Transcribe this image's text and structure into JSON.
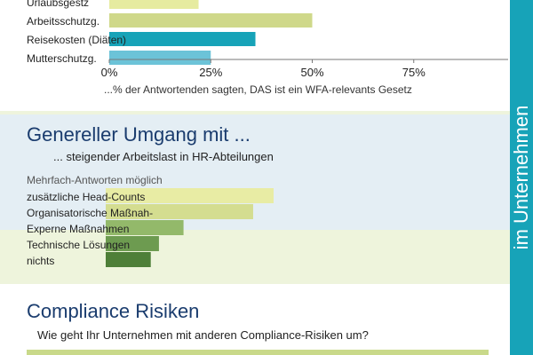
{
  "sidebar": {
    "text": "im Unternehmen",
    "color": "#17a3b8"
  },
  "sections": [
    {
      "title": "",
      "subtitle": "",
      "note": "",
      "chart_data": {
        "type": "bar",
        "orientation": "horizontal",
        "categories": [
          "Urlaubsgestz",
          "Arbeitsschutzg.",
          "Reisekosten (Diäten)",
          "Mutterschutzg."
        ],
        "values": [
          22,
          50,
          36,
          25
        ],
        "colors": [
          "#e6eba0",
          "#cfd88a",
          "#17a3b8",
          "#6cc3d8"
        ],
        "xlim": [
          0,
          100
        ],
        "xticks": [
          0,
          25,
          50,
          75
        ],
        "xtick_labels": [
          "0%",
          "25%",
          "50%",
          "75%"
        ],
        "xlabel": "...% der Antwortenden sagten, DAS ist ein WFA-relevants Gesetz",
        "ylabel": "",
        "grid": false
      }
    },
    {
      "title": "Genereller Umgang mit ...",
      "subtitle": "... steigender Arbeitslast in HR-Abteilungen",
      "note": "Mehrfach-Antworten möglich",
      "chart_data": {
        "type": "bar",
        "orientation": "horizontal",
        "categories": [
          "zusätzliche Head-Counts",
          "Organisatorische Maßnah-",
          "Experne Maßnahmen",
          "Technische Lösungen",
          "nichts"
        ],
        "values": [
          41,
          36,
          19,
          13,
          11
        ],
        "colors": [
          "#e8eca4",
          "#d4dd90",
          "#93b96a",
          "#6d9b50",
          "#4e7f38"
        ],
        "xlim": [
          0,
          100
        ],
        "xlabel": "",
        "ylabel": "",
        "grid": false
      }
    },
    {
      "title": "Compliance Risiken",
      "subtitle": "Wie geht Ihr Unternehmen mit anderen Compliance-Risiken um?",
      "note": ""
    }
  ]
}
